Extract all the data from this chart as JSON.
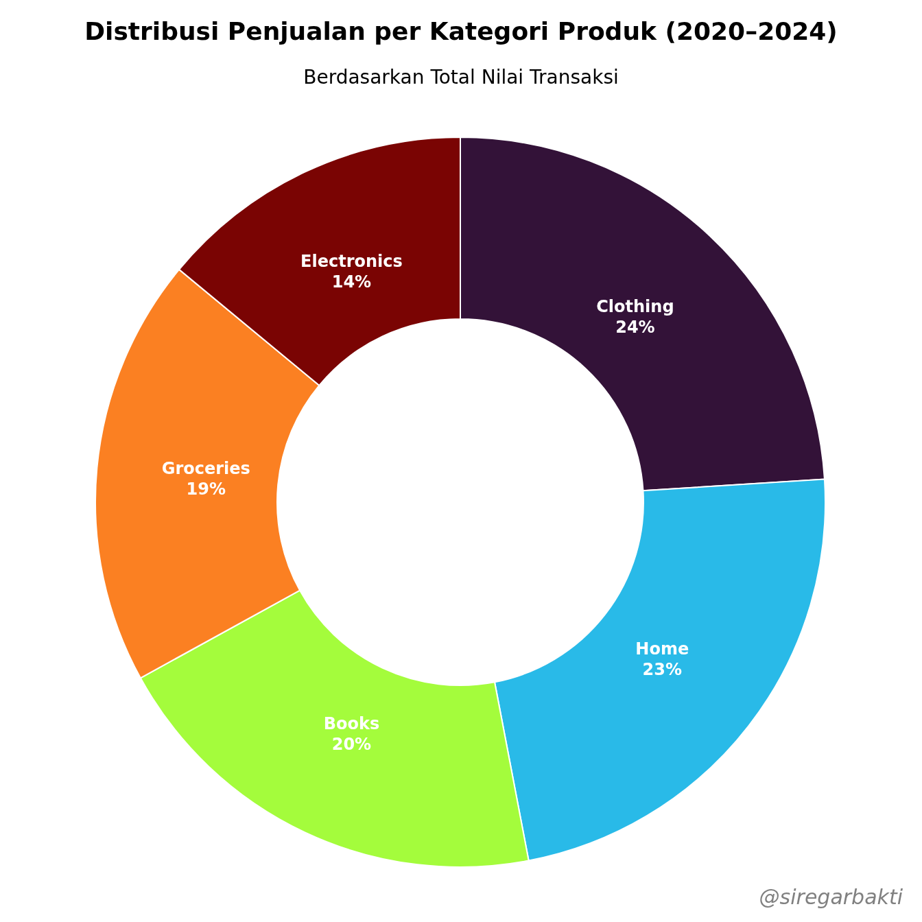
{
  "chart_data": {
    "type": "donut",
    "title": "Distribusi Penjualan per Kategori Produk (2020–2024)",
    "subtitle": "Berdasarkan Total Nilai Transaksi",
    "categories": [
      "Clothing",
      "Home",
      "Books",
      "Groceries",
      "Electronics"
    ],
    "values": [
      24,
      23,
      20,
      19,
      14
    ],
    "colors": [
      "#331238",
      "#29bae8",
      "#a4fc3c",
      "#fb8022",
      "#7a0403"
    ],
    "value_labels": [
      "24%",
      "23%",
      "20%",
      "19%",
      "14%"
    ],
    "legend": false,
    "annotations": [
      "@siregarbakti"
    ]
  }
}
